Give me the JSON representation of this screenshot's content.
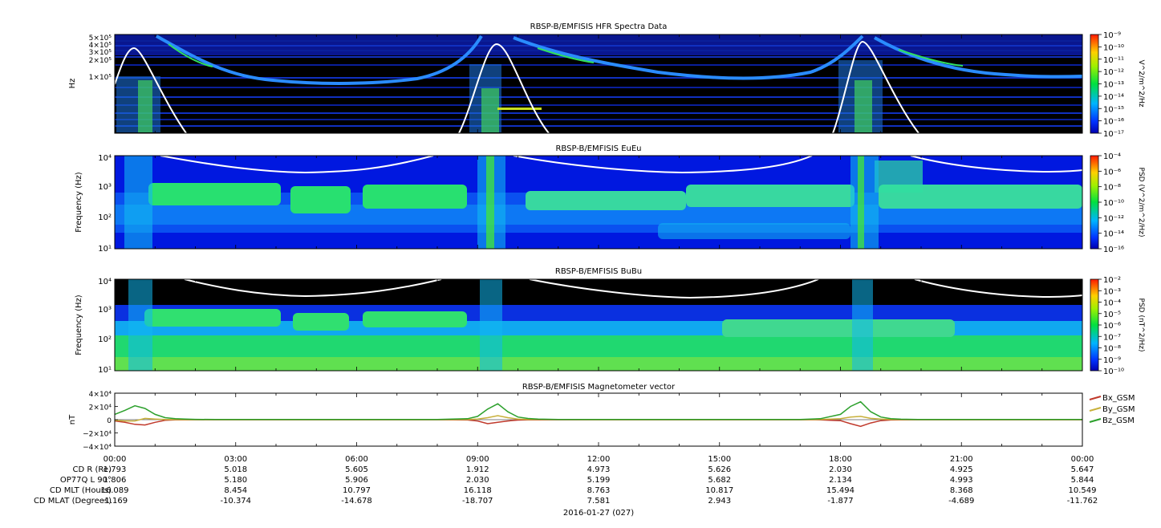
{
  "chart_data": [
    {
      "type": "heatmap",
      "title": "RBSP-B/EMFISIS  HFR Spectra Data",
      "ylabel": "Hz",
      "ylim": [
        10000,
        500000
      ],
      "yscale": "log",
      "ytick_labels": [
        "5×10⁵",
        "4×10⁵",
        "3×10⁵",
        "2×10⁵",
        "1×10⁵"
      ],
      "ytick_values": [
        500000,
        400000,
        300000,
        200000,
        100000
      ],
      "colorbar": {
        "label": "V^2/m^2/Hz",
        "tick_labels": [
          "10⁻⁹",
          "10⁻¹⁰",
          "10⁻¹¹",
          "10⁻¹²",
          "10⁻¹³",
          "10⁻¹⁴",
          "10⁻¹⁵",
          "10⁻¹⁶",
          "10⁻¹⁷"
        ],
        "log_range": [
          -17,
          -9
        ]
      },
      "overlay_line": "white"
    },
    {
      "type": "heatmap",
      "title": "RBSP-B/EMFISIS  EuEu",
      "ylabel": "Frequency (Hz)",
      "ylim": [
        10,
        10000
      ],
      "yscale": "log",
      "ytick_labels": [
        "10⁴",
        "10³",
        "10²",
        "10¹"
      ],
      "ytick_values": [
        10000,
        1000,
        100,
        10
      ],
      "colorbar": {
        "label": "PSD (V^2/m^2/Hz)",
        "tick_labels": [
          "10⁻⁴",
          "10⁻⁶",
          "10⁻⁸",
          "10⁻¹⁰",
          "10⁻¹²",
          "10⁻¹⁴",
          "10⁻¹⁶"
        ],
        "log_range": [
          -16,
          -4
        ]
      },
      "overlay_line": "white"
    },
    {
      "type": "heatmap",
      "title": "RBSP-B/EMFISIS  BuBu",
      "ylabel": "Frequency (Hz)",
      "ylim": [
        10,
        10000
      ],
      "yscale": "log",
      "ytick_labels": [
        "10⁴",
        "10³",
        "10²",
        "10¹"
      ],
      "ytick_values": [
        10000,
        1000,
        100,
        10
      ],
      "colorbar": {
        "label": "PSD (nT^2/Hz)",
        "tick_labels": [
          "10⁻²",
          "10⁻³",
          "10⁻⁴",
          "10⁻⁵",
          "10⁻⁶",
          "10⁻⁷",
          "10⁻⁸",
          "10⁻⁹",
          "10⁻¹⁰"
        ],
        "log_range": [
          -10,
          -2
        ]
      },
      "overlay_line": "white"
    },
    {
      "type": "line",
      "title": "RBSP-B/EMFISIS  Magnetometer vector",
      "ylabel": "nT",
      "ylim": [
        -40000,
        40000
      ],
      "ytick_labels": [
        "4×10⁴",
        "2×10⁴",
        "0",
        "−2×10⁴",
        "−4×10⁴"
      ],
      "ytick_values": [
        40000,
        20000,
        0,
        -20000,
        -40000
      ],
      "x_hours": [
        0,
        0.25,
        0.5,
        0.75,
        1,
        1.25,
        1.5,
        1.75,
        2,
        2.5,
        3,
        4,
        5,
        6,
        7,
        8,
        8.75,
        9,
        9.25,
        9.5,
        9.75,
        10,
        10.25,
        10.5,
        11,
        12,
        13,
        14,
        15,
        16,
        17,
        17.5,
        18,
        18.25,
        18.5,
        18.75,
        19,
        19.25,
        19.5,
        20,
        21,
        22,
        23,
        24
      ],
      "series": [
        {
          "name": "Bx_GSM",
          "color": "#c0392b",
          "values": [
            -2000,
            -4000,
            -7000,
            -8000,
            -4000,
            -1000,
            -300,
            -200,
            -100,
            -100,
            -100,
            -100,
            -100,
            -100,
            -100,
            -100,
            -500,
            -2000,
            -6000,
            -4000,
            -2000,
            -600,
            -300,
            -200,
            -100,
            -100,
            -100,
            -100,
            -100,
            -100,
            -100,
            -300,
            -1500,
            -6000,
            -10000,
            -5000,
            -1500,
            -500,
            -200,
            -100,
            -100,
            -100,
            -100,
            -100
          ]
        },
        {
          "name": "By_GSM",
          "color": "#c8b03a",
          "values": [
            -1000,
            -2000,
            -2000,
            2000,
            1000,
            300,
            100,
            0,
            0,
            0,
            0,
            0,
            0,
            0,
            0,
            0,
            200,
            1000,
            3000,
            6000,
            3000,
            1000,
            400,
            200,
            100,
            0,
            0,
            0,
            0,
            0,
            0,
            200,
            1500,
            4000,
            5000,
            2000,
            800,
            300,
            100,
            0,
            0,
            0,
            0,
            0
          ]
        },
        {
          "name": "Bz_GSM",
          "color": "#2ca02c",
          "values": [
            8000,
            14000,
            21000,
            17000,
            8000,
            3000,
            1500,
            800,
            500,
            300,
            200,
            200,
            200,
            200,
            200,
            300,
            1500,
            5000,
            16000,
            24000,
            12000,
            4000,
            1800,
            800,
            400,
            300,
            200,
            200,
            200,
            200,
            300,
            1500,
            8000,
            20000,
            27000,
            12000,
            4000,
            1500,
            700,
            300,
            200,
            200,
            200,
            200
          ]
        }
      ],
      "legend_placement": "right"
    }
  ],
  "x_axis": {
    "tick_labels": [
      "00:00",
      "03:00",
      "06:00",
      "09:00",
      "12:00",
      "15:00",
      "18:00",
      "21:00",
      "00:00"
    ],
    "date_label": "2016-01-27 (027)"
  },
  "ephemeris": {
    "row_labels": [
      "CD R (Re)",
      "OP77Q L 90°",
      "CD MLT (Hours)",
      "CD MLAT (Degrees)"
    ],
    "rows": [
      [
        "1.793",
        "5.018",
        "5.605",
        "1.912",
        "4.973",
        "5.626",
        "2.030",
        "4.925",
        "5.647"
      ],
      [
        "1.806",
        "5.180",
        "5.906",
        "2.030",
        "5.199",
        "5.682",
        "2.134",
        "4.993",
        "5.844"
      ],
      [
        "16.089",
        "8.454",
        "10.797",
        "16.118",
        "8.763",
        "10.817",
        "15.494",
        "8.368",
        "10.549"
      ],
      [
        "-1.169",
        "-10.374",
        "-14.678",
        "-18.707",
        "7.581",
        "2.943",
        "-1.877",
        "-4.689",
        "-11.762"
      ]
    ]
  }
}
